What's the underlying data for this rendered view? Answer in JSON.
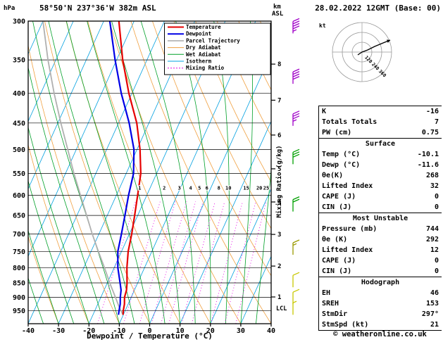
{
  "header": {
    "station": "58°50'N 237°36'W 382m ASL",
    "datetime": "28.02.2022 12GMT (Base: 00)"
  },
  "footer": {
    "copyright": "© weatheronline.co.uk"
  },
  "colors": {
    "temperature": "#e60000",
    "dewpoint": "#0000e6",
    "parcel": "#b0b0b0",
    "dry_adiabat": "#f0a040",
    "wet_adiabat": "#00a028",
    "isotherm": "#00a0e0",
    "mixing_ratio": "#e600e6",
    "grid": "#000000"
  },
  "legend": {
    "items": [
      {
        "label": "Temperature",
        "color": "#e60000",
        "width": 2,
        "dash": ""
      },
      {
        "label": "Dewpoint",
        "color": "#0000e6",
        "width": 2,
        "dash": ""
      },
      {
        "label": "Parcel Trajectory",
        "color": "#b0b0b0",
        "width": 1.6,
        "dash": ""
      },
      {
        "label": "Dry Adiabat",
        "color": "#f0a040",
        "width": 1,
        "dash": ""
      },
      {
        "label": "Wet Adiabat",
        "color": "#00a028",
        "width": 1,
        "dash": ""
      },
      {
        "label": "Isotherm",
        "color": "#00a0e0",
        "width": 1,
        "dash": ""
      },
      {
        "label": "Mixing Ratio",
        "color": "#e600e6",
        "width": 1,
        "dash": "2,2"
      }
    ]
  },
  "axes": {
    "pressure_label": "hPa",
    "pressure_ticks": [
      300,
      350,
      400,
      450,
      500,
      550,
      600,
      650,
      700,
      750,
      800,
      850,
      900,
      950
    ],
    "temp_label": "Dewpoint / Temperature (°C)",
    "temp_ticks": [
      -40,
      -30,
      -20,
      -10,
      0,
      10,
      20,
      30,
      40
    ],
    "altitude_label_lines": [
      "km",
      "ASL"
    ],
    "altitude_ticks": [
      {
        "km": 1,
        "p": 899
      },
      {
        "km": 2,
        "p": 795
      },
      {
        "km": 3,
        "p": 701
      },
      {
        "km": 4,
        "p": 616
      },
      {
        "km": 5,
        "p": 540
      },
      {
        "km": 6,
        "p": 472
      },
      {
        "km": 7,
        "p": 411
      },
      {
        "km": 8,
        "p": 356
      }
    ],
    "mixing_label": "Mixing Ratio (g/kg)",
    "lcl_label": "LCL",
    "lcl_pressure": 940
  },
  "chart_data": {
    "type": "skewt-sounding",
    "pressure_range": [
      300,
      1000
    ],
    "temp_range": [
      -40,
      40
    ],
    "isotherm_step_c": 10,
    "mixing_ratio_values": [
      1,
      2,
      3,
      4,
      5,
      6,
      8,
      10,
      15,
      20,
      25
    ],
    "temperature_profile": [
      [
        965,
        -10.1
      ],
      [
        950,
        -10.6
      ],
      [
        925,
        -11.2
      ],
      [
        900,
        -12.2
      ],
      [
        875,
        -12.6
      ],
      [
        850,
        -13.5
      ],
      [
        800,
        -15.8
      ],
      [
        750,
        -17.8
      ],
      [
        700,
        -19.2
      ],
      [
        650,
        -21.0
      ],
      [
        600,
        -23.0
      ],
      [
        550,
        -25.2
      ],
      [
        500,
        -29.0
      ],
      [
        450,
        -34.0
      ],
      [
        400,
        -41.0
      ],
      [
        350,
        -48.0
      ],
      [
        300,
        -55.0
      ]
    ],
    "dewpoint_profile": [
      [
        965,
        -11.6
      ],
      [
        950,
        -12.0
      ],
      [
        925,
        -12.6
      ],
      [
        900,
        -13.6
      ],
      [
        875,
        -14.4
      ],
      [
        850,
        -15.8
      ],
      [
        800,
        -18.8
      ],
      [
        750,
        -21.2
      ],
      [
        700,
        -22.6
      ],
      [
        650,
        -24.2
      ],
      [
        600,
        -26.0
      ],
      [
        550,
        -27.6
      ],
      [
        500,
        -31.0
      ],
      [
        450,
        -36.5
      ],
      [
        400,
        -43.5
      ],
      [
        350,
        -50.5
      ],
      [
        300,
        -58.0
      ]
    ],
    "parcel_profile": [
      [
        965,
        -10.1
      ],
      [
        940,
        -12.2
      ],
      [
        900,
        -15.2
      ],
      [
        850,
        -19.2
      ],
      [
        800,
        -23.2
      ],
      [
        750,
        -27.6
      ],
      [
        700,
        -32.2
      ],
      [
        650,
        -36.8
      ],
      [
        600,
        -41.8
      ],
      [
        550,
        -47.2
      ],
      [
        500,
        -52.8
      ],
      [
        450,
        -59.0
      ],
      [
        400,
        -65.6
      ],
      [
        350,
        -72.6
      ],
      [
        300,
        -80.0
      ]
    ],
    "wind_barbs": [
      {
        "p": 315,
        "kt": 45,
        "color": "#a000c8"
      },
      {
        "p": 385,
        "kt": 40,
        "color": "#a000c8"
      },
      {
        "p": 455,
        "kt": 35,
        "color": "#a000c8"
      },
      {
        "p": 530,
        "kt": 30,
        "color": "#00a000"
      },
      {
        "p": 640,
        "kt": 20,
        "color": "#00a000"
      },
      {
        "p": 760,
        "kt": 15,
        "color": "#9a9a00"
      },
      {
        "p": 865,
        "kt": 10,
        "color": "#c8c800"
      },
      {
        "p": 925,
        "kt": 10,
        "color": "#c8c800"
      },
      {
        "p": 965,
        "kt": 5,
        "color": "#c8c800"
      }
    ]
  },
  "hodograph": {
    "unit": "kt",
    "rings_kt": [
      10,
      20,
      30
    ],
    "ring_labels": [
      "120",
      "240",
      "360"
    ],
    "trace": [
      [
        -6,
        4
      ],
      [
        0,
        0
      ],
      [
        8,
        -3
      ],
      [
        18,
        -8
      ],
      [
        30,
        -13
      ],
      [
        40,
        -17
      ]
    ]
  },
  "panel": {
    "rows": [
      {
        "label": "K",
        "value": "-16"
      },
      {
        "label": "Totals Totals",
        "value": "7"
      },
      {
        "label": "PW (cm)",
        "value": "0.75"
      },
      {
        "header": "Surface"
      },
      {
        "label": "Temp (°C)",
        "value": "-10.1"
      },
      {
        "label": "Dewp (°C)",
        "value": "-11.6"
      },
      {
        "label": "θe(K)",
        "value": "268"
      },
      {
        "label": "Lifted Index",
        "value": "32"
      },
      {
        "label": "CAPE (J)",
        "value": "0"
      },
      {
        "label": "CIN (J)",
        "value": "0"
      },
      {
        "header": "Most Unstable"
      },
      {
        "label": "Pressure (mb)",
        "value": "744"
      },
      {
        "label": "θe (K)",
        "value": "292"
      },
      {
        "label": "Lifted Index",
        "value": "12"
      },
      {
        "label": "CAPE (J)",
        "value": "0"
      },
      {
        "label": "CIN (J)",
        "value": "0"
      },
      {
        "header": "Hodograph"
      },
      {
        "label": "EH",
        "value": "46"
      },
      {
        "label": "SREH",
        "value": "153"
      },
      {
        "label": "StmDir",
        "value": "297°"
      },
      {
        "label": "StmSpd (kt)",
        "value": "21"
      }
    ]
  }
}
